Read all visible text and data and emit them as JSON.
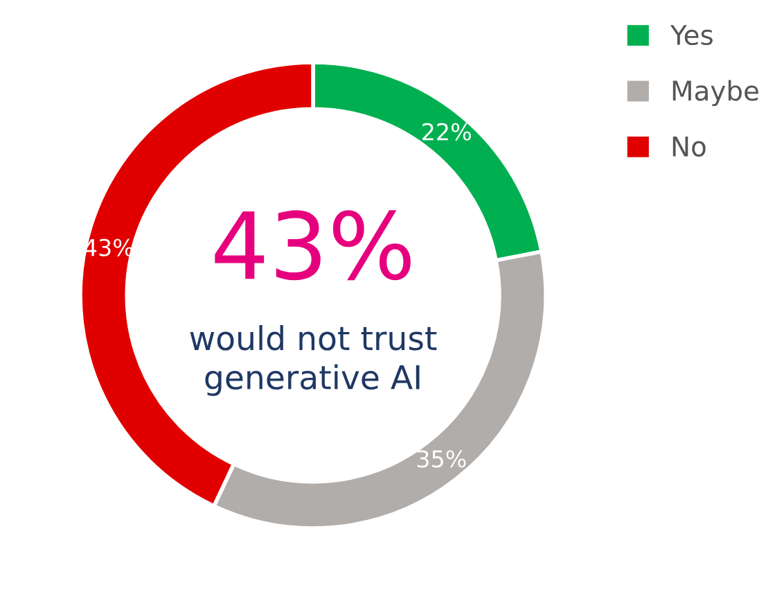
{
  "chart_data": {
    "type": "donut",
    "categories": [
      "Yes",
      "Maybe",
      "No"
    ],
    "values": [
      22,
      35,
      43
    ],
    "colors": [
      "#00b050",
      "#b0adab",
      "#e00000"
    ],
    "value_labels": [
      "22%",
      "35%",
      "43%"
    ],
    "annotations": [
      "43%",
      "would not trust\ngenerative AI"
    ],
    "legend": "top right"
  }
}
